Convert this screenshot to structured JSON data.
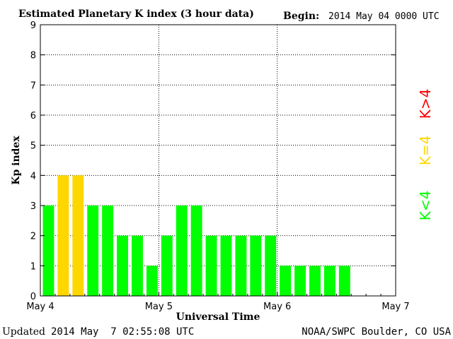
{
  "chart_data": {
    "type": "bar",
    "title": "Estimated Planetary K index (3 hour data)",
    "begin_label": "Begin:",
    "begin_value": "2014 May 04 0000 UTC",
    "xlabel": "Universal Time",
    "ylabel": "Kp index",
    "ylim": [
      0,
      9
    ],
    "y_ticks": [
      "0",
      "1",
      "2",
      "3",
      "4",
      "5",
      "6",
      "7",
      "8",
      "9"
    ],
    "x_tick_labels": [
      "May 4",
      "May 5",
      "May 6",
      "May 7"
    ],
    "x_range_days": [
      0,
      3
    ],
    "interval_hours": 3,
    "grid": true,
    "values": [
      3,
      4,
      4,
      3,
      3,
      2,
      2,
      1,
      2,
      3,
      3,
      2,
      2,
      2,
      2,
      2,
      1,
      1,
      1,
      1,
      1
    ],
    "color_thresholds": {
      "below_4": "#00ff00",
      "equal_4": "#ffd700",
      "above_4": "#ff0000"
    },
    "legend": {
      "placement": "right",
      "items": [
        {
          "label": "K<4",
          "color": "#00ff00"
        },
        {
          "label": "K=4",
          "color": "#ffd700"
        },
        {
          "label": "K>4",
          "color": "#ff0000"
        }
      ]
    }
  },
  "footer": {
    "updated_label": "Updated",
    "updated_value": "2014 May  7 02:55:08 UTC",
    "source": "NOAA/SWPC Boulder, CO USA"
  }
}
